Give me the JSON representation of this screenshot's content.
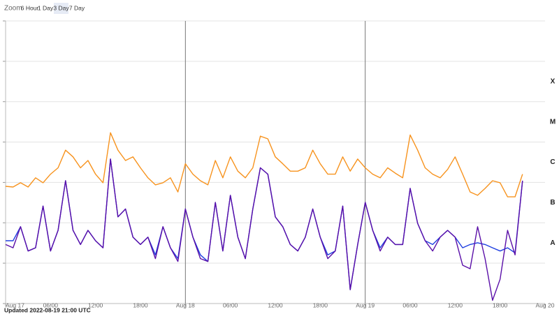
{
  "toolbar": {
    "label": "Zoom",
    "buttons": [
      "6 Hour",
      "1 Day",
      "3 Day",
      "7 Day"
    ],
    "selected": 2
  },
  "chart_data": {
    "type": "line",
    "yscale": "log",
    "grid": true,
    "x": [
      0,
      1,
      2,
      3,
      4,
      5,
      6,
      7,
      8,
      9,
      10,
      11,
      12,
      13,
      14,
      15,
      16,
      17,
      18,
      19,
      20,
      21,
      22,
      23,
      24,
      25,
      26,
      27,
      28,
      29,
      30,
      31,
      32,
      33,
      34,
      35,
      36,
      37,
      38,
      39,
      40,
      41,
      42,
      43,
      44,
      45,
      46,
      47,
      48,
      49,
      50,
      51,
      52,
      53,
      54,
      55,
      56,
      57,
      58,
      59,
      60,
      61,
      62,
      63,
      64,
      65,
      66,
      67,
      68,
      69
    ],
    "xlim": [
      0,
      72
    ],
    "xticks": [
      {
        "value": 0,
        "label": "Aug 17"
      },
      {
        "value": 6,
        "label": "06:00"
      },
      {
        "value": 12,
        "label": "12:00"
      },
      {
        "value": 18,
        "label": "18:00"
      },
      {
        "value": 24,
        "label": "Aug 18"
      },
      {
        "value": 30,
        "label": "06:00"
      },
      {
        "value": 36,
        "label": "12:00"
      },
      {
        "value": 42,
        "label": "18:00"
      },
      {
        "value": 48,
        "label": "Aug 19"
      },
      {
        "value": 54,
        "label": "06:00"
      },
      {
        "value": 60,
        "label": "12:00"
      },
      {
        "value": 66,
        "label": "18:00"
      },
      {
        "value": 72,
        "label": "Aug 20"
      }
    ],
    "day_boundaries": [
      24,
      48
    ],
    "ylim": [
      1e-09,
      0.01
    ],
    "yticks": [
      1e-09,
      1e-08,
      1e-07,
      1e-06,
      1e-05,
      0.0001,
      0.001,
      0.01
    ],
    "flare_class_bands": [
      {
        "label": "A",
        "from": 1e-08,
        "to": 1e-07
      },
      {
        "label": "B",
        "from": 1e-07,
        "to": 1e-06
      },
      {
        "label": "C",
        "from": 1e-06,
        "to": 1e-05
      },
      {
        "label": "M",
        "from": 1e-05,
        "to": 0.0001
      },
      {
        "label": "X",
        "from": 0.0001,
        "to": 0.001
      }
    ],
    "series": [
      {
        "color": "#1f3fe0",
        "values": [
          3.6e-08,
          3.6e-08,
          8e-08,
          2e-08,
          2.4e-08,
          2.6e-07,
          2e-08,
          6.5e-08,
          1.1e-06,
          6.5e-08,
          2.9e-08,
          6.5e-08,
          3.6e-08,
          2.4e-08,
          3.8e-06,
          1.4e-07,
          2.2e-07,
          4.4e-08,
          2.9e-08,
          4.4e-08,
          1.6e-08,
          8e-08,
          2.4e-08,
          1.3e-08,
          2.2e-07,
          4.4e-08,
          1.6e-08,
          1.1e-08,
          3.2e-07,
          2e-08,
          4.8e-07,
          4.4e-08,
          1.3e-08,
          2.2e-07,
          2.3e-06,
          1.6e-06,
          1.4e-07,
          8e-08,
          2.9e-08,
          2e-08,
          4.4e-08,
          2.2e-07,
          4.4e-08,
          1.6e-08,
          2e-08,
          2.6e-07,
          2.2e-09,
          2.9e-08,
          3.2e-07,
          6.5e-08,
          2.4e-08,
          4.4e-08,
          2.9e-08,
          2.9e-08,
          7.1e-07,
          9.7e-08,
          3.6e-08,
          2.9e-08,
          4.4e-08,
          6.5e-08,
          4.4e-08,
          2.4e-08,
          2.9e-08,
          3.2e-08,
          2.9e-08,
          2.4e-08,
          2e-08,
          2.4e-08,
          1.8e-08,
          1.1e-06
        ]
      },
      {
        "color": "#5a0fa8",
        "values": [
          2.9e-08,
          2.4e-08,
          8e-08,
          2e-08,
          2.4e-08,
          2.6e-07,
          2e-08,
          6.5e-08,
          1.1e-06,
          6.5e-08,
          2.9e-08,
          6.5e-08,
          3.6e-08,
          2.4e-08,
          3.8e-06,
          1.4e-07,
          2.2e-07,
          4.4e-08,
          2.9e-08,
          4.4e-08,
          1.3e-08,
          8e-08,
          2.4e-08,
          1.1e-08,
          2.2e-07,
          4.4e-08,
          1.3e-08,
          1.1e-08,
          3.2e-07,
          2e-08,
          4.8e-07,
          4.4e-08,
          1.3e-08,
          2.2e-07,
          2.3e-06,
          1.6e-06,
          1.4e-07,
          8e-08,
          2.9e-08,
          2e-08,
          4.4e-08,
          2.2e-07,
          4.4e-08,
          1.3e-08,
          2e-08,
          2.6e-07,
          2.2e-09,
          2.9e-08,
          3.2e-07,
          6.5e-08,
          2e-08,
          4.4e-08,
          2.9e-08,
          2.9e-08,
          7.1e-07,
          9.7e-08,
          3.6e-08,
          2e-08,
          4.4e-08,
          6.5e-08,
          4.4e-08,
          8.9e-09,
          7.3e-09,
          8e-08,
          1.3e-08,
          1.2e-09,
          4e-09,
          6.5e-08,
          1.6e-08,
          1.1e-06
        ]
      },
      {
        "color": "#f7931e",
        "values": [
          8e-07,
          7.7e-07,
          9.8e-07,
          7.7e-07,
          1.3e-06,
          9.8e-07,
          1.6e-06,
          2.3e-06,
          6.3e-06,
          4.3e-06,
          2.3e-06,
          3.5e-06,
          1.6e-06,
          9.8e-07,
          1.7e-05,
          6.3e-06,
          3.5e-06,
          4.3e-06,
          2.3e-06,
          1.3e-06,
          8.7e-07,
          9.8e-07,
          1.3e-06,
          5.8e-07,
          2.9e-06,
          1.6e-06,
          1.1e-06,
          8.7e-07,
          3.5e-06,
          1.3e-06,
          4.3e-06,
          1.9e-06,
          1.3e-06,
          2.3e-06,
          1.4e-05,
          1.2e-05,
          4.3e-06,
          2.9e-06,
          1.9e-06,
          1.9e-06,
          2.3e-06,
          6.3e-06,
          2.9e-06,
          1.6e-06,
          1.6e-06,
          4.3e-06,
          1.9e-06,
          3.8e-06,
          2.3e-06,
          1.6e-06,
          1.3e-06,
          2.3e-06,
          1.7e-06,
          1.3e-06,
          1.5e-05,
          6.3e-06,
          2.3e-06,
          1.6e-06,
          1.3e-06,
          2.1e-06,
          4.3e-06,
          1.6e-06,
          5.8e-07,
          4.8e-07,
          7.1e-07,
          1.1e-06,
          9.8e-07,
          4.4e-07,
          4.4e-07,
          1.6e-06
        ]
      }
    ]
  },
  "footer": "Updated 2022-08-19 21:00 UTC"
}
